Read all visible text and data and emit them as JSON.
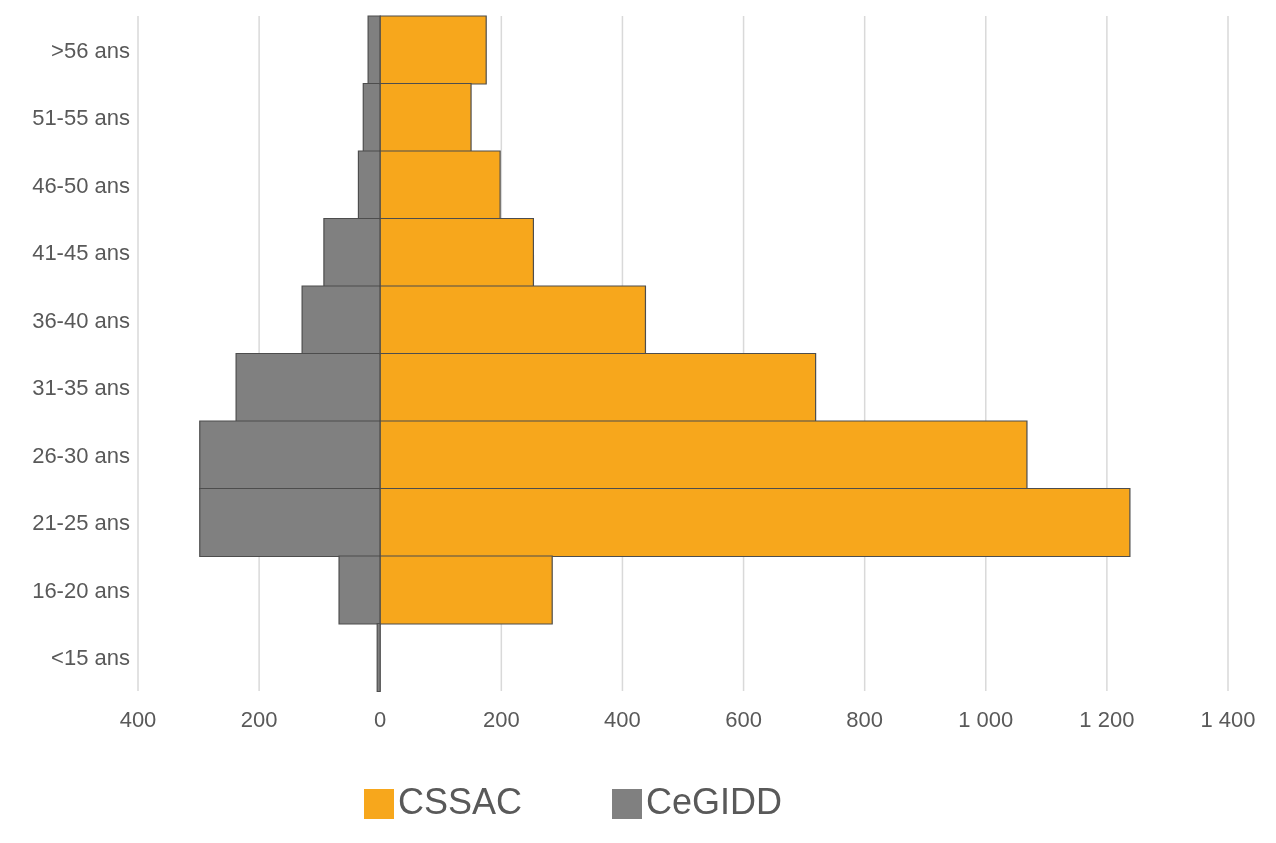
{
  "chart_data": {
    "type": "bar",
    "orientation": "horizontal",
    "stacked": true,
    "categories": [
      ">56 ans",
      "51-55 ans",
      "46-50 ans",
      "41-45 ans",
      "36-40 ans",
      "31-35 ans",
      "26-30 ans",
      "21-25 ans",
      "16-20 ans",
      "<15 ans"
    ],
    "series": [
      {
        "name": "CeGIDD",
        "color": "#808080",
        "values": [
          -20,
          -28,
          -36,
          -93,
          -129,
          -238,
          -298,
          -298,
          -68,
          -5
        ]
      },
      {
        "name": "CSSAC",
        "color": "#f7a71c",
        "values": [
          175,
          150,
          198,
          253,
          438,
          719,
          1068,
          1238,
          284,
          0
        ]
      }
    ],
    "xlim": [
      -400,
      1400
    ],
    "xticks": [
      {
        "value": -400,
        "label": "400"
      },
      {
        "value": -200,
        "label": "200"
      },
      0,
      200,
      400,
      600,
      800,
      {
        "value": 1000,
        "label": "1 000"
      },
      {
        "value": 1200,
        "label": "1 200"
      },
      {
        "value": 1400,
        "label": "1 400"
      }
    ],
    "grid": "x",
    "legend": "bottom"
  }
}
